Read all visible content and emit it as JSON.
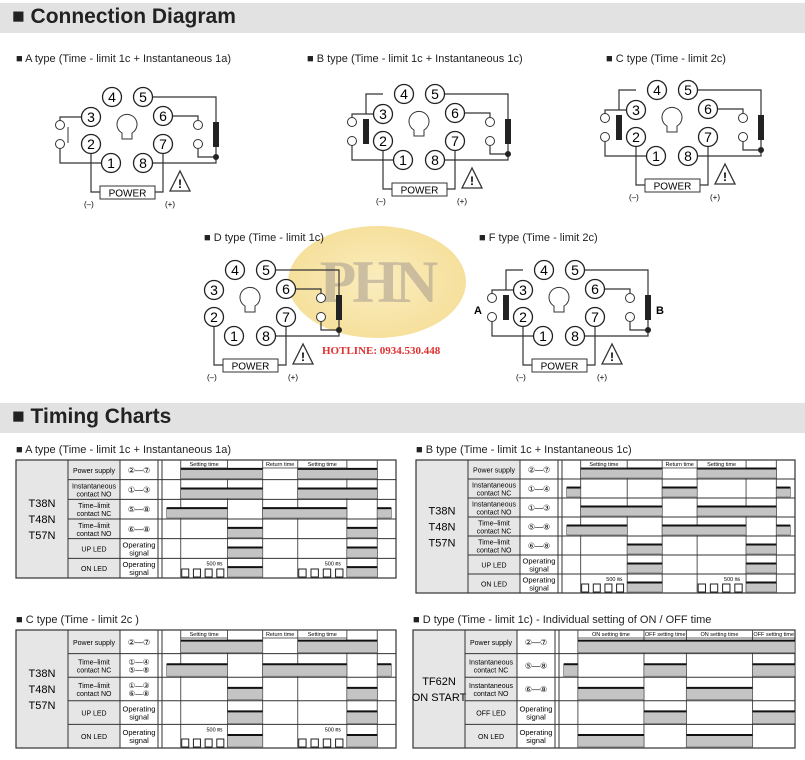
{
  "connection": {
    "title": "Connection Diagram",
    "pins": [
      "1",
      "2",
      "3",
      "4",
      "5",
      "6",
      "7",
      "8"
    ],
    "power": "POWER",
    "minus": "(–)",
    "plus": "(+)",
    "types": [
      {
        "label": "A type (Time - limit 1c + Instantaneous 1a)",
        "left": "1a",
        "right": "1c"
      },
      {
        "label": "B type (Time - limit 1c + Instantaneous 1c)",
        "left": "1c",
        "right": "1c"
      },
      {
        "label": "C type (Time - limit 2c)",
        "left": "1c",
        "right": "1c"
      },
      {
        "label": "D type (Time - limit 1c)",
        "left": "none",
        "right": "1c"
      },
      {
        "label": "F type (Time - limit 2c)",
        "left": "1c",
        "right": "1c",
        "left_mark": "A",
        "right_mark": "B"
      }
    ]
  },
  "watermark": {
    "logo": "PHN",
    "hotline": "HOTLINE: 0934.530.448"
  },
  "timing": {
    "title": "Timing Charts",
    "charts": [
      {
        "label": "A type (Time - limit 1c + Instantaneous 1a)",
        "model": [
          "T38N",
          "T48N",
          "T57N"
        ],
        "grid": [
          8,
          28,
          43,
          58,
          79,
          92
        ],
        "annotations": [
          {
            "text": "Setting time",
            "from": 8,
            "to": 28
          },
          {
            "text": "Return time",
            "from": 43,
            "to": 58
          },
          {
            "text": "Setting time",
            "from": 58,
            "to": 79
          }
        ],
        "rows": [
          {
            "label": [
              "Power supply"
            ],
            "terminal": "②—⑦",
            "high": [
              [
                8,
                43
              ],
              [
                58,
                92
              ]
            ]
          },
          {
            "label": [
              "Instantaneous",
              "contact NO"
            ],
            "terminal": "①—③",
            "high": [
              [
                8,
                43
              ],
              [
                58,
                92
              ]
            ]
          },
          {
            "label": [
              "Time–limit",
              "contact NC"
            ],
            "terminal": "⑤—⑧",
            "high": [
              [
                2,
                28
              ],
              [
                43,
                79
              ],
              [
                92,
                98
              ]
            ]
          },
          {
            "label": [
              "Time–limit",
              "contact NO"
            ],
            "terminal": "⑥—⑧",
            "high": [
              [
                28,
                43
              ],
              [
                79,
                92
              ]
            ]
          },
          {
            "label": [
              "UP LED"
            ],
            "terminal": [
              "Operating",
              "signal"
            ],
            "high": [
              [
                28,
                43
              ],
              [
                79,
                92
              ]
            ]
          },
          {
            "label": [
              "ON LED"
            ],
            "terminal": [
              "Operating",
              "signal"
            ],
            "high": [
              [
                28,
                43
              ],
              [
                79,
                92
              ]
            ],
            "pulses": [
              [
                8,
                28
              ],
              [
                58,
                79
              ]
            ],
            "pulse_note": "500 ㎳"
          }
        ]
      },
      {
        "label": "B type (Time - limit 1c + Instantaneous 1c)",
        "model": [
          "T38N",
          "T48N",
          "T57N"
        ],
        "grid": [
          8,
          28,
          43,
          58,
          79,
          92
        ],
        "annotations": [
          {
            "text": "Setting time",
            "from": 8,
            "to": 28
          },
          {
            "text": "Return time",
            "from": 43,
            "to": 58
          },
          {
            "text": "Setting time",
            "from": 58,
            "to": 79
          }
        ],
        "rows": [
          {
            "label": [
              "Power supply"
            ],
            "terminal": "②—⑦",
            "high": [
              [
                8,
                43
              ],
              [
                58,
                92
              ]
            ]
          },
          {
            "label": [
              "Instantaneous",
              "contact NC"
            ],
            "terminal": "①—④",
            "high": [
              [
                2,
                8
              ],
              [
                43,
                58
              ],
              [
                92,
                98
              ]
            ]
          },
          {
            "label": [
              "Instantaneous",
              "contact NO"
            ],
            "terminal": "①—③",
            "high": [
              [
                8,
                43
              ],
              [
                58,
                92
              ]
            ]
          },
          {
            "label": [
              "Time–limit",
              "contact NC"
            ],
            "terminal": "⑤—⑧",
            "high": [
              [
                2,
                28
              ],
              [
                43,
                79
              ],
              [
                92,
                98
              ]
            ]
          },
          {
            "label": [
              "Time–limit",
              "contact NO"
            ],
            "terminal": "⑥—⑧",
            "high": [
              [
                28,
                43
              ],
              [
                79,
                92
              ]
            ]
          },
          {
            "label": [
              "UP LED"
            ],
            "terminal": [
              "Operating",
              "signal"
            ],
            "high": [
              [
                28,
                43
              ],
              [
                79,
                92
              ]
            ]
          },
          {
            "label": [
              "ON LED"
            ],
            "terminal": [
              "Operating",
              "signal"
            ],
            "high": [
              [
                28,
                43
              ],
              [
                79,
                92
              ]
            ],
            "pulses": [
              [
                8,
                28
              ],
              [
                58,
                79
              ]
            ],
            "pulse_note": "500 ㎳"
          }
        ]
      },
      {
        "label": "C type (Time - limit 2c )",
        "model": [
          "T38N",
          "T48N",
          "T57N"
        ],
        "grid": [
          8,
          28,
          43,
          58,
          79,
          92
        ],
        "annotations": [
          {
            "text": "Setting time",
            "from": 8,
            "to": 28
          },
          {
            "text": "Return time",
            "from": 43,
            "to": 58
          },
          {
            "text": "Setting time",
            "from": 58,
            "to": 79
          }
        ],
        "rows": [
          {
            "label": [
              "Power supply"
            ],
            "terminal": "②—⑦",
            "high": [
              [
                8,
                43
              ],
              [
                58,
                92
              ]
            ]
          },
          {
            "label": [
              "Time–limit",
              "contact NC"
            ],
            "terminal": [
              "①—④",
              "⑤—⑧"
            ],
            "high": [
              [
                2,
                28
              ],
              [
                43,
                79
              ],
              [
                92,
                98
              ]
            ]
          },
          {
            "label": [
              "Time–limit",
              "contact NO"
            ],
            "terminal": [
              "①—③",
              "⑥—⑧"
            ],
            "high": [
              [
                28,
                43
              ],
              [
                79,
                92
              ]
            ]
          },
          {
            "label": [
              "UP LED"
            ],
            "terminal": [
              "Operating",
              "signal"
            ],
            "high": [
              [
                28,
                43
              ],
              [
                79,
                92
              ]
            ]
          },
          {
            "label": [
              "ON LED"
            ],
            "terminal": [
              "Operating",
              "signal"
            ],
            "high": [
              [
                28,
                43
              ],
              [
                79,
                92
              ]
            ],
            "pulses": [
              [
                8,
                28
              ],
              [
                58,
                79
              ]
            ],
            "pulse_note": "500 ㎳"
          }
        ]
      },
      {
        "label": "D type (Time - limit 1c) - Individual setting of ON / OFF time",
        "model": [
          "TF62N",
          "ON START"
        ],
        "grid": [
          8,
          36,
          54,
          82
        ],
        "annotations": [
          {
            "text": "ON setting time",
            "from": 8,
            "to": 36
          },
          {
            "text": "OFF setting time",
            "from": 36,
            "to": 54
          },
          {
            "text": "ON setting time",
            "from": 54,
            "to": 82
          },
          {
            "text": "OFF setting time",
            "from": 82,
            "to": 100
          }
        ],
        "rows": [
          {
            "label": [
              "Power supply"
            ],
            "terminal": "②—⑦",
            "high": [
              [
                8,
                100
              ]
            ]
          },
          {
            "label": [
              "Instantaneous",
              "contact NC"
            ],
            "terminal": "⑤—⑧",
            "high": [
              [
                2,
                8
              ],
              [
                36,
                54
              ],
              [
                82,
                100
              ]
            ]
          },
          {
            "label": [
              "Instantaneous",
              "contact NO"
            ],
            "terminal": "⑥—⑧",
            "high": [
              [
                8,
                36
              ],
              [
                54,
                82
              ]
            ]
          },
          {
            "label": [
              "OFF LED"
            ],
            "terminal": [
              "Operating",
              "signal"
            ],
            "high": [
              [
                36,
                54
              ],
              [
                82,
                100
              ]
            ]
          },
          {
            "label": [
              "ON LED"
            ],
            "terminal": [
              "Operating",
              "signal"
            ],
            "high": [
              [
                8,
                36
              ],
              [
                54,
                82
              ]
            ]
          }
        ]
      }
    ]
  }
}
